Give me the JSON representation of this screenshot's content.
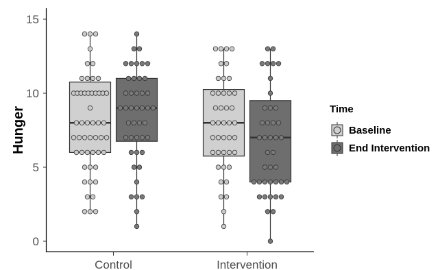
{
  "chart_data": {
    "type": "boxplot",
    "ylabel": "Hunger",
    "ylim": [
      0,
      15
    ],
    "yticks": [
      "0",
      "5",
      "10",
      "15"
    ],
    "categories": [
      "Control",
      "Intervention"
    ],
    "legend": {
      "title": "Time",
      "placement": "right",
      "entries": [
        {
          "label": "Baseline",
          "color": "#d0d0d0"
        },
        {
          "label": "End Intervention",
          "color": "#6e6e6e"
        }
      ]
    },
    "series": [
      {
        "name": "Baseline",
        "color": "#d0d0d0",
        "point_color": "#cccccc",
        "boxes": [
          {
            "category": "Control",
            "min": 2,
            "q1": 6,
            "median": 8,
            "q3": 10.75,
            "max": 14,
            "points": [
              14,
              14,
              14,
              13,
              12,
              12,
              11,
              11,
              11,
              11,
              10,
              10,
              10,
              10,
              10,
              10,
              10,
              10,
              10,
              10,
              9,
              8,
              8,
              8,
              8,
              8,
              8,
              7,
              7,
              7,
              7,
              7,
              7,
              7,
              6,
              6,
              6,
              6,
              6,
              6,
              5,
              5,
              5,
              4,
              4,
              4,
              3,
              3,
              2,
              2,
              2
            ]
          },
          {
            "category": "Intervention",
            "min": 1,
            "q1": 5.75,
            "median": 8,
            "q3": 10.25,
            "max": 13,
            "points": [
              13,
              13,
              13,
              13,
              12,
              12,
              11,
              11,
              11,
              10,
              10,
              10,
              10,
              10,
              9,
              9,
              9,
              9,
              8,
              8,
              8,
              8,
              8,
              7,
              7,
              7,
              7,
              7,
              6,
              6,
              6,
              6,
              6,
              5,
              5,
              5,
              4,
              4,
              3,
              3,
              2,
              1
            ]
          }
        ]
      },
      {
        "name": "End Intervention",
        "color": "#6e6e6e",
        "point_color": "#7a7a7a",
        "boxes": [
          {
            "category": "Control",
            "min": 1,
            "q1": 6.75,
            "median": 9,
            "q3": 11,
            "max": 14,
            "points": [
              14,
              13,
              13,
              12,
              12,
              12,
              12,
              12,
              11,
              11,
              11,
              11,
              10,
              10,
              10,
              10,
              10,
              9,
              9,
              9,
              9,
              9,
              9,
              9,
              8,
              8,
              8,
              8,
              7,
              7,
              7,
              7,
              7,
              6,
              6,
              6,
              5,
              5,
              4,
              3,
              3,
              3,
              2,
              1
            ]
          },
          {
            "category": "Intervention",
            "min": 0,
            "q1": 4,
            "median": 7,
            "q3": 9.5,
            "max": 13,
            "points": [
              13,
              13,
              12,
              12,
              12,
              12,
              11,
              10,
              9,
              9,
              9,
              8,
              8,
              8,
              8,
              7,
              7,
              7,
              7,
              7,
              6,
              6,
              5,
              5,
              5,
              4,
              4,
              4,
              4,
              4,
              4,
              4,
              3,
              3,
              3,
              3,
              3,
              2,
              2,
              0
            ]
          }
        ]
      }
    ]
  }
}
